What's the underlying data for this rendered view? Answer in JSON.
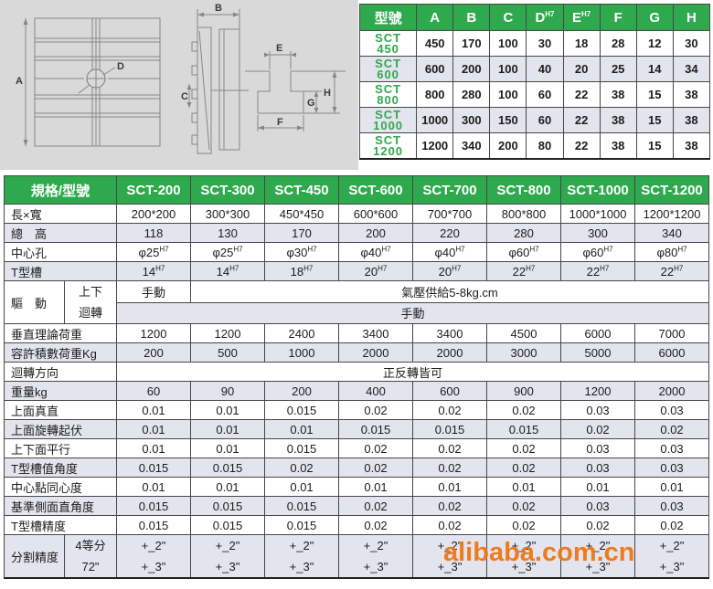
{
  "diagram": {
    "labels": {
      "A": "A",
      "B": "B",
      "C": "C",
      "D": "D",
      "E": "E",
      "F": "F",
      "G": "G",
      "H": "H"
    }
  },
  "dim_table": {
    "headers": [
      "型號",
      "A",
      "B",
      "C",
      "D^H7",
      "E^H7",
      "F",
      "G",
      "H"
    ],
    "rows": [
      {
        "model": [
          "SCT",
          "450"
        ],
        "shade": false,
        "values": [
          "450",
          "170",
          "100",
          "30",
          "18",
          "28",
          "12",
          "30"
        ]
      },
      {
        "model": [
          "SCT",
          "600"
        ],
        "shade": true,
        "values": [
          "600",
          "200",
          "100",
          "40",
          "20",
          "25",
          "14",
          "34"
        ]
      },
      {
        "model": [
          "SCT",
          "800"
        ],
        "shade": false,
        "values": [
          "800",
          "280",
          "100",
          "60",
          "22",
          "38",
          "15",
          "38"
        ]
      },
      {
        "model": [
          "SCT",
          "1000"
        ],
        "shade": true,
        "values": [
          "1000",
          "300",
          "150",
          "60",
          "22",
          "38",
          "15",
          "38"
        ]
      },
      {
        "model": [
          "SCT",
          "1200"
        ],
        "shade": false,
        "values": [
          "1200",
          "340",
          "200",
          "80",
          "22",
          "38",
          "15",
          "38"
        ]
      }
    ]
  },
  "spec_table": {
    "corner_label": "規格/型號",
    "models": [
      "SCT-200",
      "SCT-300",
      "SCT-450",
      "SCT-600",
      "SCT-700",
      "SCT-800",
      "SCT-1000",
      "SCT-1200"
    ],
    "rows": [
      {
        "type": "plain",
        "shade": false,
        "label": "長×寬",
        "cells": [
          "200*200",
          "300*300",
          "450*450",
          "600*600",
          "700*700",
          "800*800",
          "1000*1000",
          "1200*1200"
        ]
      },
      {
        "type": "plain",
        "shade": true,
        "label": "總　高",
        "cells": [
          "118",
          "130",
          "170",
          "200",
          "220",
          "280",
          "300",
          "340"
        ]
      },
      {
        "type": "plain",
        "shade": false,
        "label": "中心孔",
        "cells": [
          "φ25^H7",
          "φ25^H7",
          "φ30^H7",
          "φ40^H7",
          "φ40^H7",
          "φ60^H7",
          "φ60^H7",
          "φ80^H7"
        ]
      },
      {
        "type": "plain",
        "shade": true,
        "label": "T型槽",
        "cells": [
          "14^H7",
          "14^H7",
          "18^H7",
          "20^H7",
          "20^H7",
          "22^H7",
          "22^H7",
          "22^H7"
        ]
      },
      {
        "type": "drive",
        "label": "驅　動",
        "subs": [
          "上下",
          "迴轉"
        ],
        "row1_first": "手動",
        "row1_merged": "氣壓供給5-8kg.cm",
        "row1_shade": false,
        "row2_merged": "手動",
        "row2_shade": true
      },
      {
        "type": "plain",
        "shade": false,
        "label": "垂直理論荷重",
        "cells": [
          "1200",
          "1200",
          "2400",
          "3400",
          "3400",
          "4500",
          "6000",
          "7000"
        ]
      },
      {
        "type": "plain",
        "shade": true,
        "label": "容許積數荷重Kg",
        "cells": [
          "200",
          "500",
          "1000",
          "2000",
          "2000",
          "3000",
          "5000",
          "6000"
        ]
      },
      {
        "type": "merged",
        "shade": false,
        "label": "迴轉方向",
        "merged": "正反轉皆可"
      },
      {
        "type": "plain",
        "shade": true,
        "label": "重量kg",
        "cells": [
          "60",
          "90",
          "200",
          "400",
          "600",
          "900",
          "1200",
          "2000"
        ]
      },
      {
        "type": "plain",
        "shade": false,
        "label": "上面真直",
        "cells": [
          "0.01",
          "0.01",
          "0.015",
          "0.02",
          "0.02",
          "0.02",
          "0.03",
          "0.03"
        ]
      },
      {
        "type": "plain",
        "shade": true,
        "label": "上面旋轉起伏",
        "cells": [
          "0.01",
          "0.01",
          "0.01",
          "0.015",
          "0.015",
          "0.015",
          "0.02",
          "0.02"
        ]
      },
      {
        "type": "plain",
        "shade": false,
        "label": "上下面平行",
        "cells": [
          "0.01",
          "0.01",
          "0.015",
          "0.02",
          "0.02",
          "0.02",
          "0.03",
          "0.03"
        ]
      },
      {
        "type": "plain",
        "shade": true,
        "label": "T型槽值角度",
        "cells": [
          "0.015",
          "0.015",
          "0.02",
          "0.02",
          "0.02",
          "0.02",
          "0.03",
          "0.03"
        ]
      },
      {
        "type": "plain",
        "shade": false,
        "label": "中心點同心度",
        "cells": [
          "0.01",
          "0.01",
          "0.01",
          "0.01",
          "0.01",
          "0.01",
          "0.01",
          "0.01"
        ]
      },
      {
        "type": "plain",
        "shade": true,
        "label": "基準側面直角度",
        "cells": [
          "0.015",
          "0.015",
          "0.015",
          "0.02",
          "0.02",
          "0.02",
          "0.03",
          "0.03"
        ]
      },
      {
        "type": "plain",
        "shade": false,
        "label": "T型槽精度",
        "cells": [
          "0.015",
          "0.015",
          "0.015",
          "0.02",
          "0.02",
          "0.02",
          "0.02",
          "0.02"
        ]
      },
      {
        "type": "split",
        "shade": true,
        "label": "分割精度",
        "subs": [
          "4等分",
          "72\""
        ],
        "cells_top": [
          "+_2\"",
          "+_2\"",
          "+_2\"",
          "+_2\"",
          "+_2\"",
          "+_2\"",
          "+_2\"",
          "+_2\""
        ],
        "cells_bottom": [
          "+_3\"",
          "+_3\"",
          "+_3\"",
          "+_3\"",
          "+_3\"",
          "+_3\"",
          "+_3\"",
          "+_3\""
        ]
      }
    ]
  },
  "watermark": {
    "text": "alibaba.com.cn"
  },
  "colors": {
    "header_green": "#2fa94d",
    "row_shade": "#e3e4ee",
    "watermark_orange": "#ed750f",
    "diagram_bg": "#d9d9d9"
  }
}
